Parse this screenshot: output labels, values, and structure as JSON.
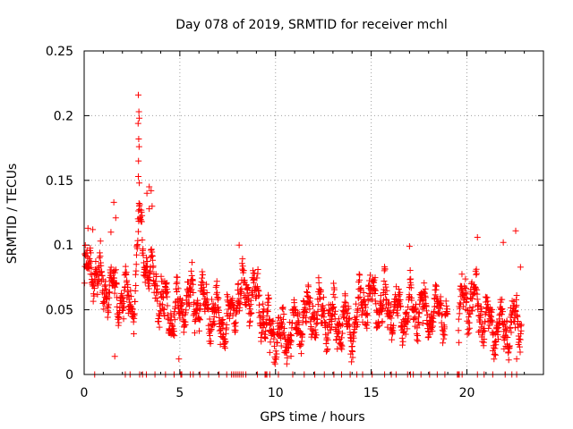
{
  "chart_data": {
    "type": "scatter",
    "title": "Day 078 of 2019, SRMTID for receiver mchl",
    "xlabel": "GPS time / hours",
    "ylabel": "SRMTID / TECUs",
    "xlim": [
      0,
      24
    ],
    "ylim": [
      0,
      0.25
    ],
    "xticks": [
      0,
      5,
      10,
      15,
      20
    ],
    "xtick_labels": [
      "0",
      "5",
      "10",
      "15",
      "20"
    ],
    "yticks": [
      0,
      0.05,
      0.1,
      0.15,
      0.2,
      0.25
    ],
    "ytick_labels": [
      "0",
      "0.05",
      "0.1",
      "0.15",
      "0.2",
      "0.25"
    ],
    "grid": true,
    "marker": "+",
    "series": [
      {
        "name": "SRMTID",
        "color": "#ff0000",
        "trend": [
          [
            0.0,
            0.075
          ],
          [
            0.3,
            0.085
          ],
          [
            0.6,
            0.08
          ],
          [
            1.0,
            0.065
          ],
          [
            1.3,
            0.07
          ],
          [
            1.7,
            0.06
          ],
          [
            2.0,
            0.06
          ],
          [
            2.4,
            0.055
          ],
          [
            2.7,
            0.065
          ],
          [
            2.85,
            0.12
          ],
          [
            3.2,
            0.09
          ],
          [
            3.6,
            0.07
          ],
          [
            4.0,
            0.06
          ],
          [
            4.5,
            0.045
          ],
          [
            5.0,
            0.05
          ],
          [
            5.5,
            0.06
          ],
          [
            6.0,
            0.055
          ],
          [
            6.5,
            0.05
          ],
          [
            7.0,
            0.045
          ],
          [
            7.5,
            0.04
          ],
          [
            8.0,
            0.06
          ],
          [
            8.5,
            0.065
          ],
          [
            9.0,
            0.06
          ],
          [
            9.5,
            0.04
          ],
          [
            10.0,
            0.03
          ],
          [
            10.5,
            0.03
          ],
          [
            11.0,
            0.035
          ],
          [
            11.5,
            0.045
          ],
          [
            12.0,
            0.05
          ],
          [
            12.5,
            0.045
          ],
          [
            13.0,
            0.04
          ],
          [
            13.5,
            0.04
          ],
          [
            14.0,
            0.035
          ],
          [
            14.5,
            0.055
          ],
          [
            15.0,
            0.06
          ],
          [
            15.5,
            0.055
          ],
          [
            16.0,
            0.05
          ],
          [
            16.5,
            0.045
          ],
          [
            17.0,
            0.05
          ],
          [
            17.5,
            0.05
          ],
          [
            18.0,
            0.045
          ],
          [
            18.5,
            0.05
          ],
          [
            19.0,
            0.045
          ],
          [
            19.4,
            0.04
          ],
          [
            19.8,
            0.055
          ],
          [
            20.3,
            0.06
          ],
          [
            20.8,
            0.045
          ],
          [
            21.2,
            0.04
          ],
          [
            21.7,
            0.035
          ],
          [
            22.2,
            0.035
          ],
          [
            22.7,
            0.045
          ]
        ],
        "gaps": [
          [
            19.0,
            19.55
          ],
          [
            22.85,
            24.0
          ]
        ],
        "spread": 0.017,
        "spikes": [
          [
            2.83,
            0.216
          ],
          [
            2.86,
            0.203
          ],
          [
            2.88,
            0.198
          ],
          [
            2.82,
            0.194
          ],
          [
            2.85,
            0.182
          ],
          [
            2.87,
            0.176
          ],
          [
            2.84,
            0.165
          ],
          [
            2.83,
            0.153
          ],
          [
            2.88,
            0.148
          ],
          [
            3.4,
            0.145
          ],
          [
            3.5,
            0.142
          ],
          [
            3.28,
            0.14
          ],
          [
            3.55,
            0.13
          ],
          [
            3.4,
            0.128
          ],
          [
            1.55,
            0.133
          ],
          [
            1.65,
            0.121
          ],
          [
            0.2,
            0.113
          ],
          [
            0.45,
            0.112
          ],
          [
            1.4,
            0.11
          ],
          [
            22.55,
            0.111
          ],
          [
            20.55,
            0.106
          ],
          [
            21.9,
            0.102
          ],
          [
            8.1,
            0.1
          ],
          [
            17.0,
            0.099
          ],
          [
            22.8,
            0.083
          ],
          [
            4.95,
            0.012
          ],
          [
            21.5,
            0.015
          ],
          [
            22.6,
            0.012
          ],
          [
            1.6,
            0.014
          ],
          [
            9.7,
            0.017
          ]
        ],
        "zero_points": [
          0.55,
          2.15,
          2.4,
          2.9,
          3.05,
          3.25,
          3.7,
          4.25,
          4.7,
          5.05,
          5.1,
          5.55,
          5.7,
          6.05,
          6.5,
          7.05,
          7.45,
          7.7,
          7.8,
          7.9,
          8.0,
          8.1,
          8.2,
          8.3,
          8.45,
          9.05,
          9.45,
          9.5,
          9.55,
          9.7,
          10.15,
          10.9,
          11.5,
          12.05,
          12.55,
          13.05,
          13.45,
          13.9,
          14.25,
          14.55,
          15.05,
          15.7,
          16.05,
          16.3,
          16.9,
          17.05,
          17.2,
          17.6,
          18.05,
          18.45,
          18.85,
          19.5,
          19.55,
          19.6,
          19.75,
          20.55,
          20.9,
          21.35,
          22.0,
          22.35,
          22.6
        ]
      }
    ]
  }
}
